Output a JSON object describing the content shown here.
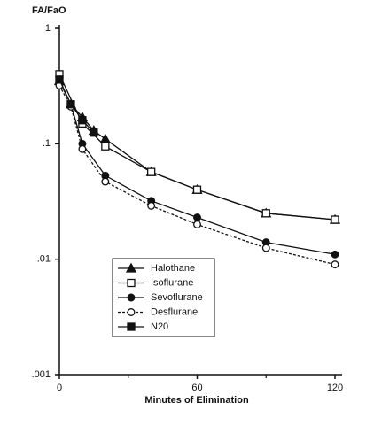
{
  "chart_data": {
    "type": "line",
    "y_label": "FA/FaO",
    "x_label": "Minutes of Elimination",
    "log_y": true,
    "xlim": [
      0,
      120
    ],
    "xticks": [
      0,
      60,
      120
    ],
    "xminor_ticks": [
      30,
      90
    ],
    "ylim": [
      0.001,
      1
    ],
    "yticks": [
      {
        "value": 0.001,
        "label": ".001"
      },
      {
        "value": 0.01,
        "label": ".01"
      },
      {
        "value": 0.1,
        "label": ".1"
      },
      {
        "value": 1,
        "label": "1"
      }
    ],
    "legend": "lower-left",
    "series": [
      {
        "name": "Halothane",
        "color": "#111111",
        "marker": "triangle",
        "dashed": false,
        "x": [
          0,
          5,
          10,
          15,
          20,
          40,
          60,
          90,
          120
        ],
        "values": [
          0.35,
          0.22,
          0.17,
          0.13,
          0.11,
          0.057,
          0.04,
          0.025,
          0.022
        ]
      },
      {
        "name": "Isoflurane",
        "color": "#111111",
        "marker": "square-open",
        "dashed": false,
        "x": [
          0,
          10,
          20,
          40,
          60,
          90,
          120
        ],
        "values": [
          0.4,
          0.15,
          0.095,
          0.057,
          0.04,
          0.025,
          0.022
        ]
      },
      {
        "name": "Sevoflurane",
        "color": "#111111",
        "marker": "circle-filled",
        "dashed": false,
        "x": [
          0,
          5,
          10,
          20,
          40,
          60,
          90,
          120
        ],
        "values": [
          0.35,
          0.22,
          0.1,
          0.053,
          0.032,
          0.023,
          0.014,
          0.011
        ]
      },
      {
        "name": "Desflurane",
        "color": "#111111",
        "marker": "circle-open",
        "dashed": true,
        "x": [
          0,
          5,
          10,
          20,
          40,
          60,
          90,
          120
        ],
        "values": [
          0.32,
          0.21,
          0.09,
          0.047,
          0.029,
          0.02,
          0.0125,
          0.009
        ]
      },
      {
        "name": "N20",
        "color": "#111111",
        "marker": "square-filled",
        "dashed": false,
        "x": [
          0,
          5,
          10,
          15
        ],
        "values": [
          0.36,
          0.22,
          0.16,
          0.125
        ]
      }
    ]
  }
}
